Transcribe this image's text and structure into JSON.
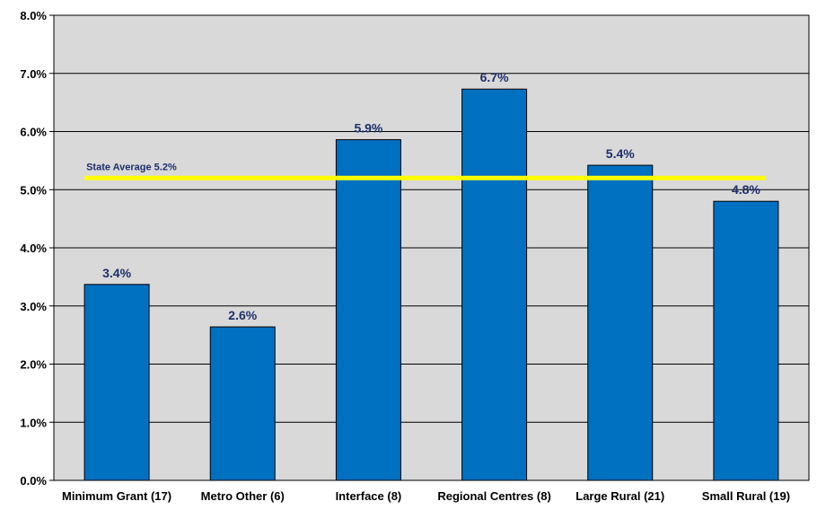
{
  "chart_data": {
    "type": "bar",
    "categories": [
      "Minimum Grant (17)",
      "Metro Other (6)",
      "Interface (8)",
      "Regional Centres (8)",
      "Large Rural (21)",
      "Small Rural (19)"
    ],
    "values": [
      3.37,
      2.64,
      5.86,
      6.73,
      5.42,
      4.8
    ],
    "data_labels": [
      "3.4%",
      "2.6%",
      "5.9%",
      "6.7%",
      "5.4%",
      "4.8%"
    ],
    "y_ticks": [
      "0.0%",
      "1.0%",
      "2.0%",
      "3.0%",
      "4.0%",
      "5.0%",
      "6.0%",
      "7.0%",
      "8.0%"
    ],
    "ylim": [
      0,
      8
    ],
    "grid": true,
    "title": "",
    "xlabel": "",
    "ylabel": "",
    "reference_line": {
      "label": "State Average 5.2%",
      "value": 5.2
    },
    "colors": {
      "bar": "#0070c0",
      "bar_border": "#000000",
      "plot_bg": "#d9d9d9",
      "data_label": "#1f2f6b",
      "reference_line": "#ffff00",
      "reference_label": "#1f2f6b",
      "axis_text": "#000000"
    }
  }
}
